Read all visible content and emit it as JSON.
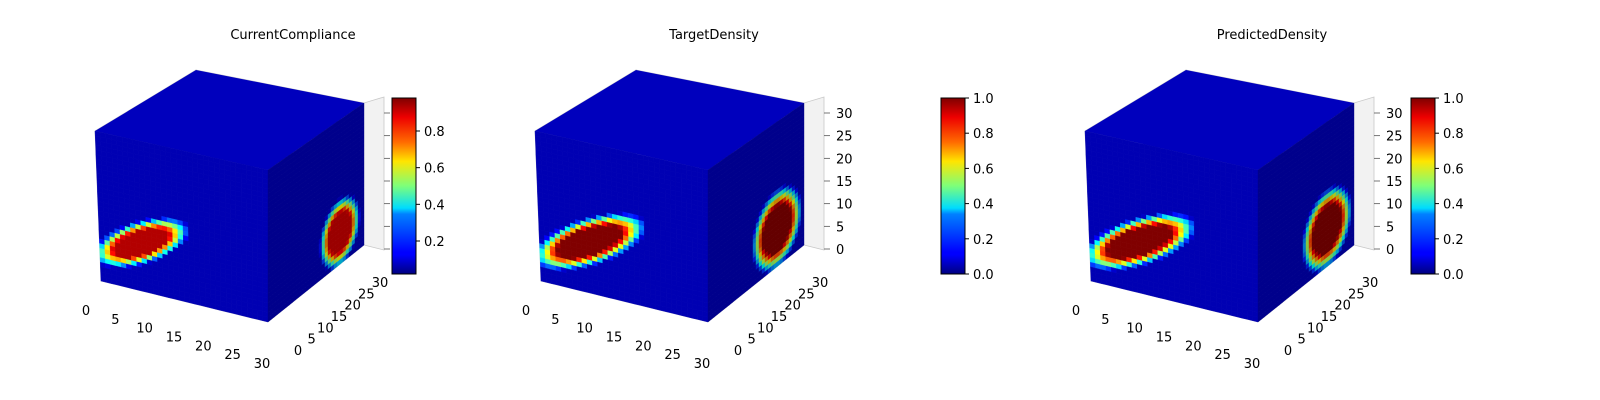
{
  "chart_data": [
    {
      "type": "voxel-3d",
      "title": "CurrentCompliance",
      "x_ticks": [
        "0",
        "5",
        "10",
        "15",
        "20",
        "25",
        "30"
      ],
      "y_ticks": [
        "0",
        "5",
        "10",
        "15",
        "20",
        "25",
        "30"
      ],
      "z_ticks": [],
      "colorbar": {
        "ticks": [
          "0.2",
          "0.4",
          "0.6",
          "0.8"
        ],
        "tick_values": [
          0.2,
          0.4,
          0.6,
          0.8
        ],
        "range": [
          0.02,
          0.98
        ]
      },
      "hotspots": {
        "front": {
          "cx": 0.25,
          "cy": 0.68,
          "rx": 0.27,
          "ry": 0.1,
          "angle": -34,
          "peak": 0.95
        },
        "side": {
          "cx": 0.75,
          "cy": 0.22,
          "rx": 0.17,
          "ry": 0.19,
          "peak": 0.93
        }
      }
    },
    {
      "type": "voxel-3d",
      "title": "TargetDensity",
      "x_ticks": [
        "0",
        "5",
        "10",
        "15",
        "20",
        "25",
        "30"
      ],
      "y_ticks": [
        "0",
        "5",
        "10",
        "15",
        "20",
        "25",
        "30"
      ],
      "z_ticks": [
        "0",
        "5",
        "10",
        "15",
        "20",
        "25",
        "30"
      ],
      "colorbar": {
        "ticks": [
          "0.0",
          "0.2",
          "0.4",
          "0.6",
          "0.8",
          "1.0"
        ],
        "tick_values": [
          0,
          0.2,
          0.4,
          0.6,
          0.8,
          1.0
        ],
        "range": [
          0,
          1
        ]
      },
      "hotspots": {
        "front": {
          "cx": 0.3,
          "cy": 0.66,
          "rx": 0.32,
          "ry": 0.11,
          "angle": -34,
          "peak": 1.0
        },
        "side": {
          "cx": 0.72,
          "cy": 0.26,
          "rx": 0.21,
          "ry": 0.22,
          "peak": 1.0
        }
      }
    },
    {
      "type": "voxel-3d",
      "title": "PredictedDensity",
      "x_ticks": [
        "0",
        "5",
        "10",
        "15",
        "20",
        "25",
        "30"
      ],
      "y_ticks": [
        "0",
        "5",
        "10",
        "15",
        "20",
        "25",
        "30"
      ],
      "z_ticks": [
        "0",
        "5",
        "10",
        "15",
        "20",
        "25",
        "30"
      ],
      "colorbar": {
        "ticks": [
          "0.0",
          "0.2",
          "0.4",
          "0.6",
          "0.8",
          "1.0"
        ],
        "tick_values": [
          0,
          0.2,
          0.4,
          0.6,
          0.8,
          1.0
        ],
        "range": [
          0,
          1
        ]
      },
      "hotspots": {
        "front": {
          "cx": 0.3,
          "cy": 0.66,
          "rx": 0.32,
          "ry": 0.11,
          "angle": -34,
          "peak": 1.0
        },
        "side": {
          "cx": 0.72,
          "cy": 0.26,
          "rx": 0.21,
          "ry": 0.22,
          "peak": 1.0
        }
      }
    }
  ],
  "colormap": "jet"
}
